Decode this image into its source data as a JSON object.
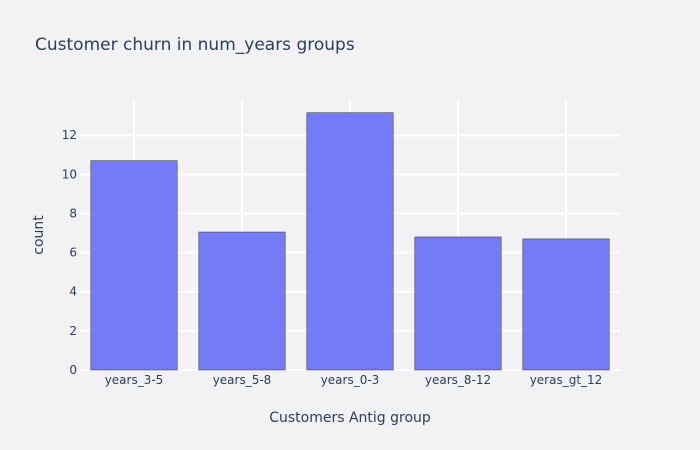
{
  "colors": {
    "background": "#f2f2f2",
    "grid": "#ffffff",
    "bar_fill": "#737bf7",
    "bar_stroke": "#444444",
    "text": "#2a3f5f"
  },
  "chart_data": {
    "type": "bar",
    "title": "Customer churn in num_years groups",
    "xlabel": "Customers Antig group",
    "ylabel": "count",
    "categories": [
      "years_3-5",
      "years_5-8",
      "years_0-3",
      "years_8-12",
      "yeras_gt_12"
    ],
    "values": [
      10.7,
      7.05,
      13.15,
      6.8,
      6.7
    ],
    "ylim": [
      0,
      13.8
    ],
    "yticks": [
      0,
      2,
      4,
      6,
      8,
      10,
      12
    ],
    "ytick_labels": [
      "0",
      "2",
      "4",
      "6",
      "8",
      "10",
      "12"
    ],
    "grid": true,
    "legend": "none"
  }
}
